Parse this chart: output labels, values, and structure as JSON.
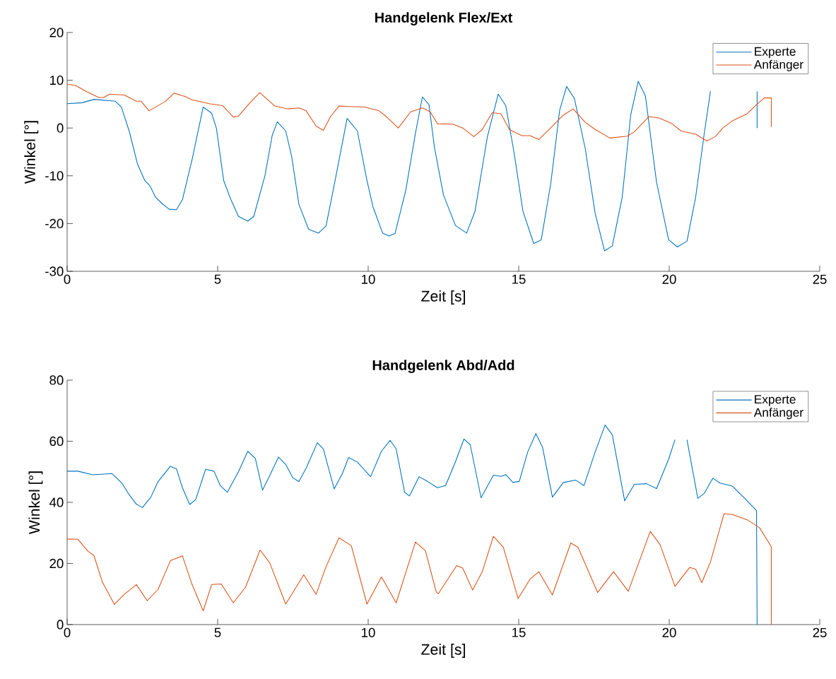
{
  "chart_data": [
    {
      "type": "line",
      "title": "Handgelenk Flex/Ext",
      "xlabel": "Zeit [s]",
      "ylabel": "Winkel [°]",
      "xlim": [
        0,
        25
      ],
      "ylim": [
        -30,
        20
      ],
      "xticks": [
        0,
        5,
        10,
        15,
        20,
        25
      ],
      "yticks": [
        -30,
        -20,
        -10,
        0,
        10,
        20
      ],
      "legend": "top right",
      "series": [
        {
          "name": "Experte",
          "color": "#0072bd",
          "x": [
            0,
            0.5,
            0.9,
            1.6,
            1.8,
            2.06,
            2.34,
            2.58,
            2.74,
            2.94,
            3.15,
            3.39,
            3.63,
            3.83,
            4.15,
            4.52,
            4.8,
            4.96,
            5.2,
            5.44,
            5.69,
            6.0,
            6.2,
            6.57,
            6.81,
            6.98,
            7.26,
            7.46,
            7.7,
            8.02,
            8.35,
            8.6,
            8.9,
            9.3,
            9.64,
            9.96,
            10.16,
            10.48,
            10.69,
            10.89,
            11.25,
            11.57,
            11.8,
            12.02,
            12.2,
            12.5,
            12.9,
            13.27,
            13.55,
            13.96,
            14.32,
            14.57,
            14.85,
            15.14,
            15.5,
            15.75,
            16.07,
            16.36,
            16.59,
            16.85,
            17.21,
            17.54,
            17.85,
            18.11,
            18.44,
            18.72,
            18.97,
            19.21,
            19.58,
            19.98,
            20.27,
            20.59,
            20.88,
            21.16,
            21.37,
            22.0,
            22.92,
            22.92
          ],
          "values": [
            5.1,
            5.3,
            6.0,
            5.6,
            4.4,
            -0.6,
            -7.6,
            -11.0,
            -12.0,
            -14.5,
            -15.8,
            -17.0,
            -17.1,
            -15.0,
            -6.6,
            4.4,
            3.1,
            -0.1,
            -11.0,
            -15.0,
            -18.5,
            -19.5,
            -18.5,
            -10.0,
            -1.6,
            1.3,
            -0.6,
            -6.0,
            -16.0,
            -21.2,
            -22.0,
            -20.5,
            -11.0,
            2.0,
            -0.6,
            -11.0,
            -16.5,
            -22.0,
            -22.6,
            -22.1,
            -13.0,
            -1.1,
            6.5,
            4.9,
            -4.0,
            -14.0,
            -20.4,
            -22.0,
            -17.4,
            -1.8,
            7.1,
            4.7,
            -5.3,
            -17.4,
            -24.2,
            -23.4,
            -11.4,
            3.7,
            8.7,
            6.2,
            -4.3,
            -17.9,
            -25.7,
            -24.7,
            -14.4,
            2.7,
            9.8,
            6.7,
            -11.4,
            -23.4,
            -24.9,
            -23.7,
            -14.4,
            -1.3,
            7.7,
            null,
            7.7,
            0
          ]
        },
        {
          "name": "Anfänger",
          "color": "#d95319",
          "x": [
            0,
            0.28,
            0.65,
            1.05,
            1.21,
            1.41,
            1.9,
            2.3,
            2.46,
            2.72,
            3.27,
            3.55,
            3.91,
            4.15,
            4.72,
            5.16,
            5.52,
            5.69,
            6.09,
            6.4,
            6.9,
            7.34,
            7.7,
            7.94,
            8.27,
            8.51,
            8.75,
            9.03,
            9.35,
            9.88,
            10.36,
            10.6,
            11.0,
            11.41,
            11.81,
            12.06,
            12.3,
            12.82,
            13.14,
            13.51,
            13.79,
            14.12,
            14.41,
            14.69,
            15.1,
            15.38,
            15.67,
            16.07,
            16.48,
            16.81,
            17.21,
            17.54,
            18.03,
            18.6,
            18.84,
            19.33,
            19.66,
            20.07,
            20.39,
            20.88,
            21.25,
            21.53,
            21.78,
            22.1,
            22.59,
            22.92,
            23.16,
            23.39,
            23.39
          ],
          "values": [
            9.2,
            8.9,
            7.6,
            6.4,
            6.4,
            7.1,
            6.9,
            5.6,
            5.6,
            3.6,
            5.6,
            7.3,
            6.6,
            5.9,
            5.1,
            4.7,
            2.3,
            2.5,
            5.4,
            7.4,
            4.6,
            4.0,
            4.2,
            3.6,
            0.4,
            -0.5,
            2.4,
            4.6,
            4.5,
            4.4,
            3.6,
            2.4,
            0,
            3.4,
            4.2,
            3.4,
            0.9,
            0.8,
            0,
            -1.8,
            -0.3,
            3.2,
            3.0,
            -0.3,
            -1.6,
            -1.6,
            -2.4,
            0.1,
            2.7,
            4.0,
            1.2,
            -0.3,
            -2.1,
            -1.7,
            -0.8,
            2.4,
            2.1,
            1.0,
            -0.6,
            -1.3,
            -2.7,
            -1.8,
            0,
            1.5,
            3.0,
            5.0,
            6.3,
            6.3,
            0.2
          ]
        }
      ]
    },
    {
      "type": "line",
      "title": "Handgelenk Abd/Add",
      "xlabel": "Zeit [s]",
      "ylabel": "Winkel [°]",
      "xlim": [
        0,
        25
      ],
      "ylim": [
        0,
        80
      ],
      "xticks": [
        0,
        5,
        10,
        15,
        20,
        25
      ],
      "yticks": [
        0,
        20,
        40,
        60,
        80
      ],
      "legend": "top right",
      "series": [
        {
          "name": "Experte",
          "color": "#0072bd",
          "x": [
            0,
            0.36,
            0.85,
            1.49,
            1.81,
            2.06,
            2.3,
            2.5,
            2.78,
            3.02,
            3.43,
            3.63,
            3.83,
            4.07,
            4.27,
            4.6,
            4.88,
            5.08,
            5.32,
            5.69,
            6.0,
            6.25,
            6.49,
            6.73,
            7.02,
            7.26,
            7.5,
            7.7,
            7.94,
            8.31,
            8.51,
            8.87,
            9.15,
            9.35,
            9.64,
            10.08,
            10.44,
            10.73,
            10.93,
            11.21,
            11.37,
            11.69,
            11.98,
            12.3,
            12.57,
            12.9,
            13.18,
            13.39,
            13.75,
            14.16,
            14.41,
            14.57,
            14.81,
            15.02,
            15.3,
            15.57,
            15.79,
            16.12,
            16.48,
            16.89,
            17.17,
            17.54,
            17.87,
            18.11,
            18.52,
            18.84,
            19.25,
            19.58,
            19.98,
            20.19,
            20.4,
            20.59,
            20.95,
            21.16,
            21.45,
            21.69,
            22.1,
            22.51,
            22.9,
            22.92
          ],
          "values": [
            50.2,
            50.2,
            49,
            49.4,
            46.4,
            42.5,
            39.4,
            38.3,
            41.7,
            46.8,
            51.8,
            51,
            44.8,
            39.3,
            40.9,
            50.8,
            50.2,
            45.6,
            43.3,
            50,
            56.7,
            54.4,
            44,
            48.8,
            54.8,
            52.4,
            48,
            46.8,
            51.2,
            59.5,
            57.5,
            44.4,
            49.6,
            54.7,
            53.2,
            48.4,
            56.7,
            60.3,
            57.5,
            43.3,
            42.1,
            48.4,
            46.8,
            44.8,
            45.5,
            53.3,
            60.7,
            58.9,
            41.5,
            48.9,
            48.5,
            49.1,
            46.5,
            46.9,
            56.5,
            62.5,
            58.1,
            41.7,
            46.5,
            47.3,
            45.5,
            56.5,
            65.3,
            62.1,
            40.5,
            45.9,
            46.1,
            44.5,
            54.1,
            60.5,
            null,
            60.5,
            41.3,
            42.9,
            47.9,
            46.3,
            45.3,
            41.3,
            37.3,
            0
          ]
        },
        {
          "name": "Anfänger",
          "color": "#d95319",
          "x": [
            0,
            0.36,
            0.69,
            0.89,
            1.17,
            1.57,
            1.9,
            2.3,
            2.66,
            3.02,
            3.43,
            3.83,
            4.15,
            4.52,
            4.8,
            5.12,
            5.52,
            5.93,
            6.41,
            6.73,
            7.26,
            7.86,
            8.27,
            8.59,
            9.03,
            9.44,
            9.96,
            10.44,
            10.93,
            11.57,
            11.9,
            12.26,
            12.33,
            12.94,
            13.14,
            13.47,
            13.79,
            14.16,
            14.49,
            14.98,
            15.38,
            15.67,
            16.12,
            16.73,
            16.97,
            17.62,
            18.15,
            18.64,
            19.37,
            19.7,
            20.19,
            20.68,
            20.88,
            21.08,
            21.37,
            21.82,
            22.1,
            22.59,
            23.0,
            23.39,
            23.39
          ],
          "values": [
            28,
            27.9,
            24,
            22.6,
            13.9,
            6.6,
            9.9,
            13.1,
            7.8,
            11.5,
            20.9,
            22.5,
            13.1,
            4.5,
            13.1,
            13.3,
            7.1,
            12.3,
            24.4,
            20.2,
            6.7,
            16.3,
            9.9,
            18.7,
            28.4,
            25.8,
            6.7,
            15.6,
            7.1,
            27.0,
            24.2,
            10.7,
            10.1,
            19.3,
            18.5,
            11.3,
            17.3,
            28.9,
            25.3,
            8.5,
            14.9,
            17.3,
            9.7,
            26.7,
            25.3,
            10.5,
            17.3,
            10.9,
            30.5,
            26.1,
            12.5,
            18.7,
            18.1,
            13.7,
            20.5,
            36.3,
            36.0,
            34.3,
            31.7,
            25.5,
            0
          ]
        }
      ]
    }
  ]
}
